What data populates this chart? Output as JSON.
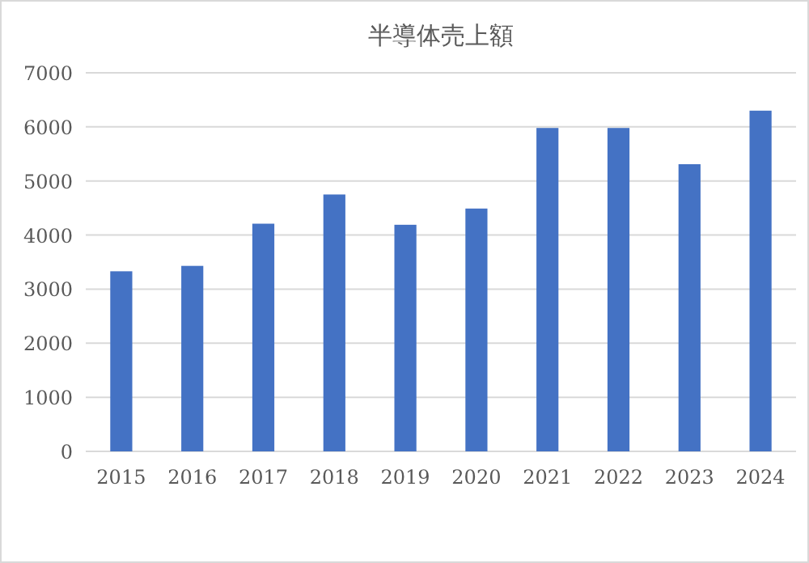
{
  "chart_data": {
    "type": "bar",
    "title": "半導体売上額",
    "categories": [
      "2015",
      "2016",
      "2017",
      "2018",
      "2019",
      "2020",
      "2021",
      "2022",
      "2023",
      "2024"
    ],
    "values": [
      3330,
      3430,
      4210,
      4750,
      4190,
      4490,
      5980,
      5980,
      5310,
      6300
    ],
    "color": "#4472c4",
    "ylim": [
      0,
      7000
    ],
    "yticks": [
      0,
      1000,
      2000,
      3000,
      4000,
      5000,
      6000,
      7000
    ],
    "grid": "y"
  }
}
